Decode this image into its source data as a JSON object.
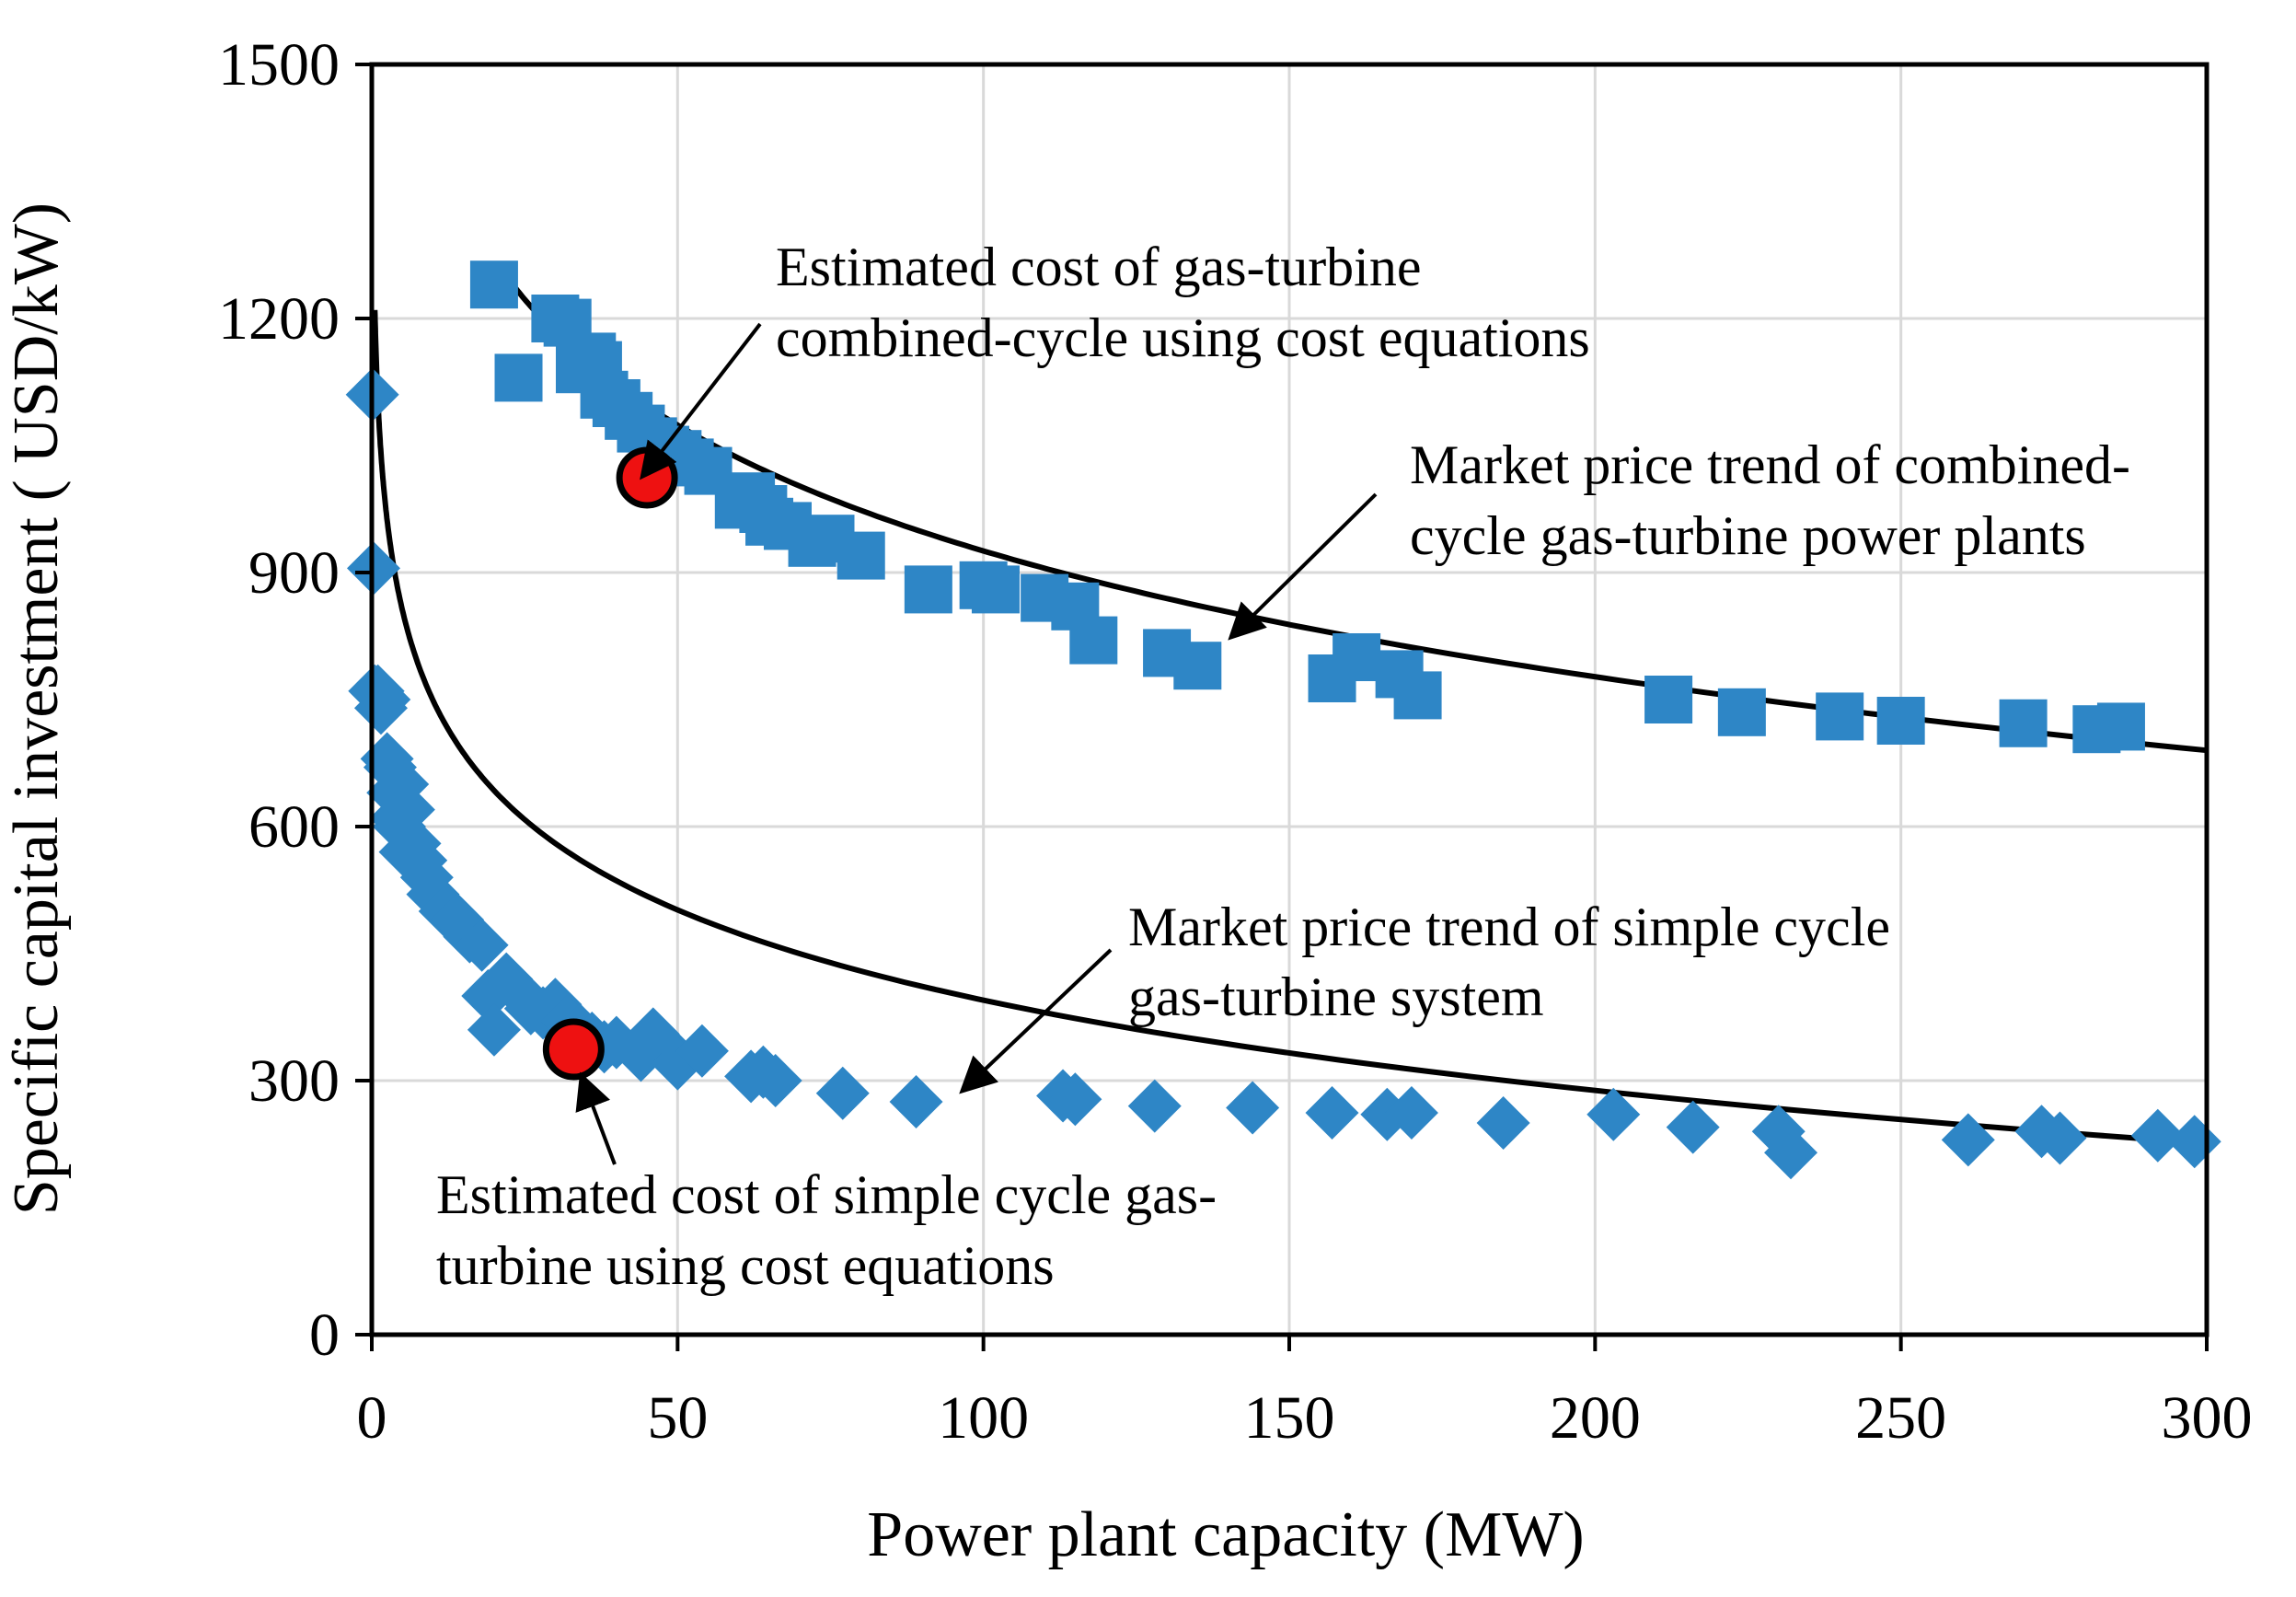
{
  "chart_data": {
    "type": "scatter",
    "title": "",
    "xlabel": "Power plant capacity (MW)",
    "ylabel": "Specific capital investment ( USD/kW)",
    "xlim": [
      0,
      300
    ],
    "ylim": [
      0,
      1500
    ],
    "xticks": [
      0,
      50,
      100,
      150,
      200,
      250,
      300
    ],
    "yticks": [
      0,
      300,
      600,
      900,
      1200,
      1500
    ],
    "grid": true,
    "legend": "none",
    "series": [
      {
        "name": "Combined-cycle gas-turbine power plants",
        "marker": "square",
        "color": "#2e86c6",
        "x": [
          20,
          24,
          30,
          32,
          34,
          36,
          37,
          38,
          40,
          42,
          44,
          46,
          48,
          50,
          52,
          55,
          60,
          62,
          64,
          65,
          68,
          72,
          75,
          80,
          91,
          100,
          102,
          110,
          115,
          118,
          130,
          135,
          157,
          161,
          168,
          171,
          212,
          224,
          240,
          250,
          270,
          282,
          286
        ],
        "y": [
          1240,
          1130,
          1200,
          1195,
          1140,
          1155,
          1145,
          1110,
          1100,
          1085,
          1070,
          1055,
          1045,
          1040,
          1030,
          1020,
          980,
          990,
          975,
          960,
          955,
          935,
          940,
          920,
          880,
          885,
          880,
          870,
          860,
          820,
          805,
          790,
          775,
          800,
          780,
          755,
          750,
          735,
          730,
          725,
          722,
          715,
          718
        ]
      },
      {
        "name": "Simple cycle gas-turbine system",
        "marker": "diamond",
        "color": "#2e86c6",
        "x": [
          0.1,
          0.3,
          0.5,
          1,
          1.5,
          2,
          2.5,
          3,
          3.5,
          4,
          4.5,
          5,
          5.5,
          6,
          7,
          8,
          9,
          10,
          12,
          14,
          16,
          18,
          19,
          20,
          22,
          24,
          26,
          28,
          30,
          32,
          34,
          36,
          38,
          40,
          44,
          46,
          48,
          50,
          54,
          62,
          64,
          66,
          77,
          89,
          113,
          115,
          128,
          144,
          157,
          166,
          170,
          185,
          203,
          216,
          230,
          232,
          261,
          273,
          276,
          292,
          298
        ],
        "y": [
          1110,
          905,
          760,
          760,
          740,
          750,
          680,
          670,
          640,
          610,
          600,
          650,
          570,
          620,
          580,
          560,
          540,
          520,
          500,
          490,
          470,
          460,
          400,
          360,
          420,
          405,
          385,
          380,
          390,
          370,
          360,
          350,
          340,
          345,
          330,
          355,
          340,
          320,
          335,
          305,
          310,
          300,
          285,
          275,
          282,
          278,
          270,
          268,
          262,
          260,
          262,
          250,
          260,
          245,
          240,
          215,
          230,
          240,
          232,
          235,
          228
        ]
      }
    ],
    "trendlines": [
      {
        "name": "Market price trend of combined-cycle gas-turbine power plants",
        "x_from": 21,
        "x_to": 300,
        "y_at_21": 1260,
        "y_at_300": 690
      },
      {
        "name": "Market price trend of simple cycle gas-turbine system",
        "x_from": 0.5,
        "x_to": 300,
        "y_at_0_5": 1210,
        "y_at_300": 226
      }
    ],
    "estimated_points": [
      {
        "name": "Estimated cost of gas-turbine combined-cycle using cost equations",
        "x": 45,
        "y": 1012
      },
      {
        "name": "Estimated cost of simple cycle gas-turbine using cost equations",
        "x": 33,
        "y": 337
      }
    ],
    "annotations": {
      "cc_estimate_line1": "Estimated cost of gas-turbine",
      "cc_estimate_line2": "combined-cycle using cost equations",
      "cc_trend_line1": "Market price trend of combined-",
      "cc_trend_line2": "cycle gas-turbine power plants",
      "sc_trend_line1": "Market price trend of simple cycle",
      "sc_trend_line2": "gas-turbine system",
      "sc_estimate_line1": "Estimated cost of simple cycle gas-",
      "sc_estimate_line2": "turbine using cost equations"
    }
  }
}
